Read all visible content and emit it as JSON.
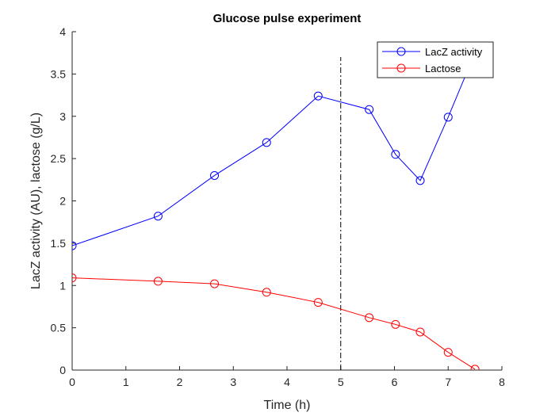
{
  "chart_data": {
    "type": "line",
    "title": "Glucose pulse experiment",
    "xlabel": "Time (h)",
    "ylabel": "LacZ activity (AU), lactose (g/L)",
    "xlim": [
      0,
      8
    ],
    "ylim": [
      0,
      4
    ],
    "xticks": [
      0,
      1,
      2,
      3,
      4,
      5,
      6,
      7,
      8
    ],
    "yticks": [
      0,
      0.5,
      1,
      1.5,
      2,
      2.5,
      3,
      3.5,
      4
    ],
    "xtick_labels": [
      "0",
      "1",
      "2",
      "3",
      "4",
      "5",
      "6",
      "7",
      "8"
    ],
    "ytick_labels": [
      "0",
      "0.5",
      "1",
      "1.5",
      "2",
      "2.5",
      "3",
      "3.5",
      "4"
    ],
    "grid": false,
    "legend_position": "top-right",
    "series": [
      {
        "name": "LacZ activity",
        "color": "#0000ff",
        "marker": "circle",
        "x": [
          0,
          1.6,
          2.65,
          3.62,
          4.58,
          5.53,
          6.02,
          6.48,
          7.0,
          7.5
        ],
        "y": [
          1.47,
          1.82,
          2.3,
          2.69,
          3.24,
          3.08,
          2.55,
          2.24,
          2.99,
          3.75
        ]
      },
      {
        "name": "Lactose",
        "color": "#ff0000",
        "marker": "circle",
        "x": [
          0,
          1.6,
          2.65,
          3.62,
          4.58,
          5.53,
          6.02,
          6.48,
          7.0,
          7.5
        ],
        "y": [
          1.09,
          1.05,
          1.02,
          0.92,
          0.8,
          0.62,
          0.54,
          0.45,
          0.21,
          0.01
        ]
      }
    ],
    "annotations": [
      {
        "type": "vertical-line",
        "x": 5,
        "y_range": [
          0,
          3.7
        ],
        "style": "dash-dot",
        "color": "#000000"
      }
    ]
  }
}
